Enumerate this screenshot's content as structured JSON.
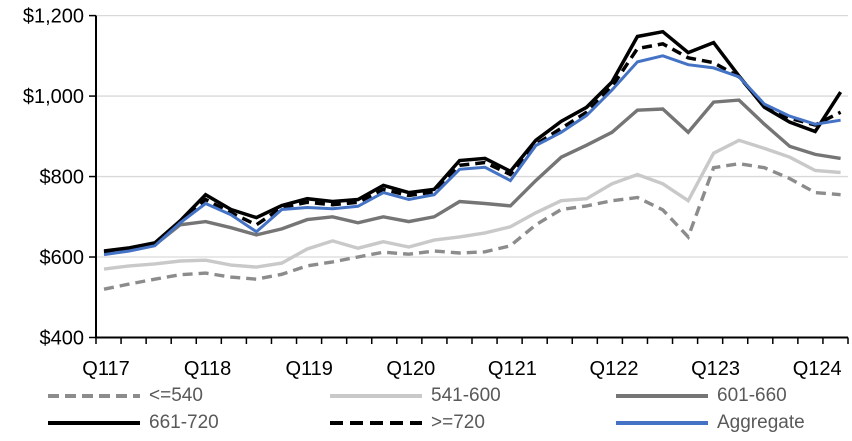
{
  "chart_data": {
    "type": "line",
    "title": "",
    "xlabel": "",
    "ylabel": "",
    "ylim": [
      400,
      1200
    ],
    "ytick_step": 200,
    "ytick_labels": [
      "$400",
      "$600",
      "$800",
      "$1,000",
      "$1,200"
    ],
    "grid": "horizontal",
    "legend_position": "bottom",
    "categories": [
      "Q117",
      "Q217",
      "Q317",
      "Q417",
      "Q118",
      "Q218",
      "Q318",
      "Q418",
      "Q119",
      "Q219",
      "Q319",
      "Q419",
      "Q120",
      "Q220",
      "Q320",
      "Q420",
      "Q121",
      "Q221",
      "Q321",
      "Q421",
      "Q122",
      "Q222",
      "Q322",
      "Q422",
      "Q123",
      "Q223",
      "Q323",
      "Q423",
      "Q124",
      "Q224"
    ],
    "shown_x_labels": [
      "Q117",
      "Q118",
      "Q119",
      "Q120",
      "Q121",
      "Q122",
      "Q123",
      "Q124"
    ],
    "axis_color": "#000000",
    "gridline_color": "#d9d9d9",
    "series": [
      {
        "name": "<=540",
        "color": "#8c8c8c",
        "style": "dashed",
        "width": 3.4,
        "values": [
          520,
          533,
          545,
          556,
          560,
          550,
          545,
          557,
          578,
          588,
          600,
          612,
          607,
          615,
          610,
          613,
          628,
          680,
          718,
          727,
          740,
          748,
          717,
          650,
          822,
          832,
          822,
          795,
          760,
          755
        ]
      },
      {
        "name": "541-600",
        "color": "#c9c9c9",
        "style": "solid",
        "width": 3.4,
        "values": [
          570,
          578,
          583,
          590,
          592,
          580,
          575,
          585,
          620,
          640,
          622,
          638,
          625,
          642,
          650,
          660,
          675,
          710,
          740,
          745,
          782,
          805,
          782,
          740,
          858,
          890,
          870,
          848,
          815,
          810
        ]
      },
      {
        "name": "601-660",
        "color": "#757575",
        "style": "solid",
        "width": 3.4,
        "values": [
          610,
          618,
          630,
          680,
          688,
          673,
          655,
          670,
          693,
          700,
          685,
          700,
          688,
          700,
          738,
          733,
          727,
          790,
          848,
          878,
          910,
          965,
          968,
          910,
          985,
          990,
          930,
          875,
          855,
          845
        ]
      },
      {
        "name": "661-720",
        "color": "#000000",
        "style": "solid",
        "width": 3.5,
        "values": [
          615,
          623,
          635,
          690,
          755,
          718,
          698,
          728,
          745,
          738,
          743,
          778,
          760,
          768,
          840,
          845,
          813,
          890,
          937,
          972,
          1035,
          1148,
          1160,
          1108,
          1133,
          1050,
          972,
          935,
          912,
          1010
        ]
      },
      {
        "name": ">=720",
        "color": "#000000",
        "style": "dashed",
        "width": 3.5,
        "values": [
          613,
          621,
          633,
          686,
          743,
          710,
          680,
          723,
          736,
          730,
          736,
          768,
          753,
          762,
          828,
          835,
          805,
          880,
          920,
          960,
          1023,
          1118,
          1130,
          1095,
          1083,
          1048,
          975,
          945,
          928,
          960
        ]
      },
      {
        "name": "Aggregate",
        "color": "#4472c4",
        "style": "solid",
        "width": 3.0,
        "values": [
          606,
          615,
          628,
          685,
          733,
          705,
          663,
          718,
          723,
          720,
          726,
          760,
          743,
          755,
          818,
          823,
          790,
          877,
          910,
          952,
          1015,
          1085,
          1100,
          1078,
          1070,
          1048,
          980,
          950,
          930,
          940
        ]
      }
    ]
  },
  "legend": {
    "row1": [
      "<=540",
      "541-600",
      "601-660"
    ],
    "row2": [
      "661-720",
      ">=720",
      "Aggregate"
    ]
  }
}
